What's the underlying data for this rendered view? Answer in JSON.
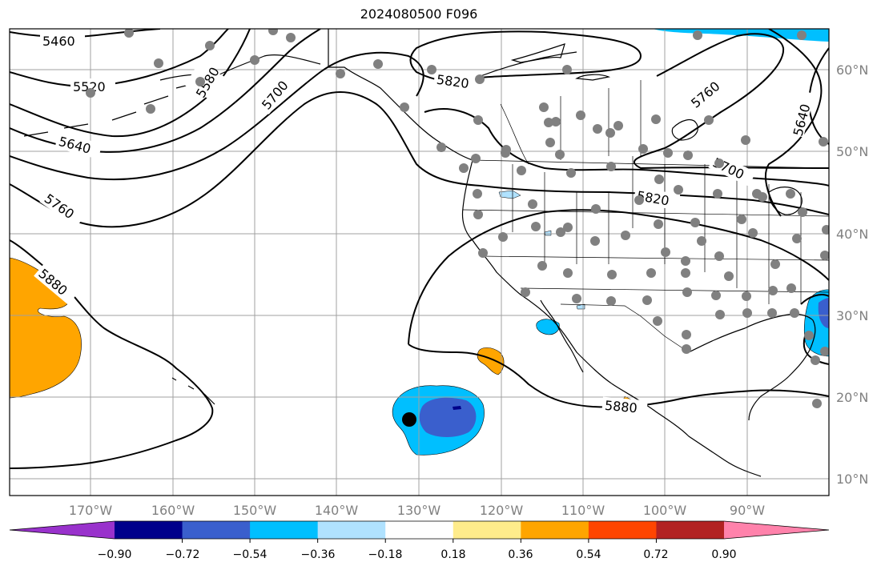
{
  "title": "2024080500 F096",
  "map": {
    "projection": "PlateCarree",
    "extent_lon": [
      -180,
      -80
    ],
    "extent_lat": [
      7,
      65
    ],
    "grid": true,
    "station_marker_color": "#808080",
    "storm_marker_color": "#000000",
    "coastline_color": "#000000"
  },
  "lat_ticks": [
    "10°N",
    "20°N",
    "30°N",
    "40°N",
    "50°N",
    "60°N"
  ],
  "lon_ticks": [
    "170°W",
    "160°W",
    "150°W",
    "140°W",
    "130°W",
    "120°W",
    "110°W",
    "100°W",
    "90°W"
  ],
  "contours": {
    "variable": "500 hPa geopotential height",
    "levels": [
      "5460",
      "5520",
      "5580",
      "5640",
      "5700",
      "5760",
      "5820",
      "5880"
    ],
    "labels": [
      {
        "text": "5460"
      },
      {
        "text": "5520"
      },
      {
        "text": "5580"
      },
      {
        "text": "5700"
      },
      {
        "text": "5640"
      },
      {
        "text": "5760"
      },
      {
        "text": "5880"
      },
      {
        "text": "5820"
      },
      {
        "text": "5820"
      },
      {
        "text": "5700"
      },
      {
        "text": "5760"
      },
      {
        "text": "5640"
      },
      {
        "text": "5880"
      }
    ]
  },
  "colorbar": {
    "tick_labels": [
      "−0.90",
      "−0.72",
      "−0.54",
      "−0.36",
      "−0.18",
      "0.18",
      "0.36",
      "0.54",
      "0.72",
      "0.90"
    ],
    "colors": [
      "#9932cc",
      "#00008b",
      "#3a5fcd",
      "#00bfff",
      "#b0e2ff",
      "#ffffff",
      "#ffec8b",
      "#ffa500",
      "#ff4500",
      "#b22222",
      "#ff82ab"
    ],
    "extend": "both"
  }
}
